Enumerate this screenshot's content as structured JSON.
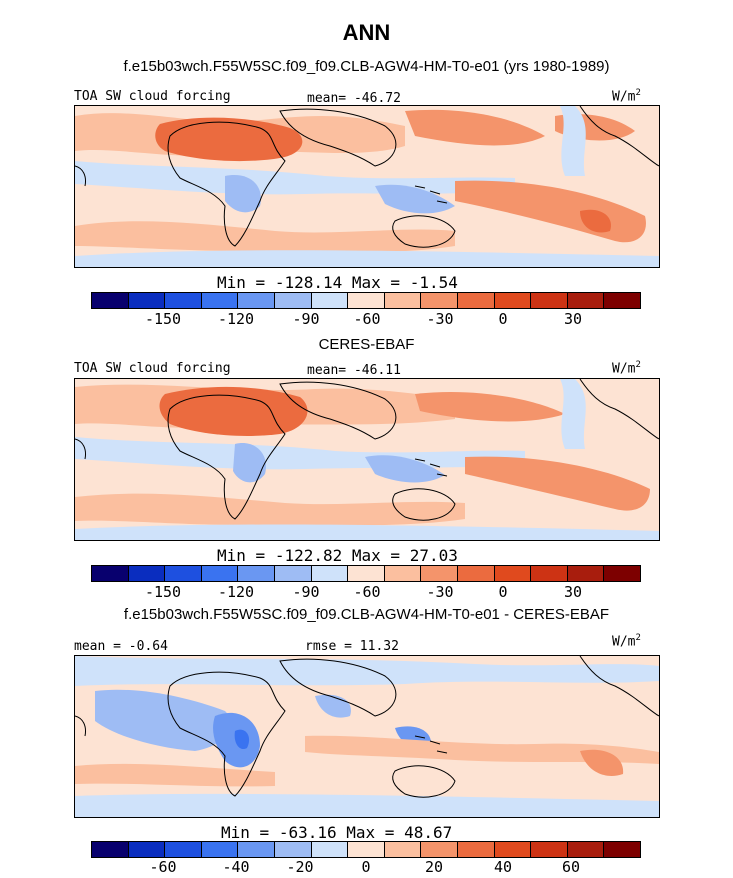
{
  "figure": {
    "title": "ANN",
    "model_name_line": "f.e15b03wch.F55W5SC.f09_f09.CLB-AGW4-HM-T0-e01 (yrs 1980-1989)",
    "obs_name": "CERES-EBAF",
    "diff_name": "f.e15b03wch.F55W5SC.f09_f09.CLB-AGW4-HM-T0-e01 - CERES-EBAF"
  },
  "palette": {
    "colors": [
      "#08006e",
      "#0a2dbf",
      "#1e50e0",
      "#3a73f0",
      "#6a97f2",
      "#9ebcf4",
      "#cfe2fa",
      "#fde3d3",
      "#fbbf9f",
      "#f4946b",
      "#eb6b3f",
      "#e04a1e",
      "#cd3314",
      "#a81d0d",
      "#7d0000"
    ],
    "land_outline": "#000000"
  },
  "chart_data": [
    {
      "type": "heatmap",
      "panel": "model",
      "label_left": "TOA SW cloud forcing",
      "mean_label": "mean=",
      "mean_value": "-46.72",
      "units": "W/m",
      "units_sup": "2",
      "min_label": "Min =",
      "min_value": "-128.14",
      "max_label": "Max =",
      "max_value": "-1.54",
      "colorbar_ticks": [
        "-150",
        "-120",
        "-90",
        "-60",
        "-30",
        "0",
        "30"
      ],
      "colorbar_levels": [
        -150,
        -120,
        -90,
        -60,
        -30,
        0,
        30
      ]
    },
    {
      "type": "heatmap",
      "panel": "observations",
      "label_left": "TOA SW cloud forcing",
      "mean_label": "mean=",
      "mean_value": "-46.11",
      "units": "W/m",
      "units_sup": "2",
      "min_label": "Min =",
      "min_value": "-122.82",
      "max_label": "Max =",
      "max_value": "27.03",
      "colorbar_ticks": [
        "-150",
        "-120",
        "-90",
        "-60",
        "-30",
        "0",
        "30"
      ],
      "colorbar_levels": [
        -150,
        -120,
        -90,
        -60,
        -30,
        0,
        30
      ]
    },
    {
      "type": "heatmap",
      "panel": "difference",
      "mean_label": "mean =",
      "mean_value": "-0.64",
      "rmse_label": "rmse =",
      "rmse_value": "11.32",
      "units": "W/m",
      "units_sup": "2",
      "min_label": "Min =",
      "min_value": "-63.16",
      "max_label": "Max =",
      "max_value": "48.67",
      "colorbar_ticks": [
        "-60",
        "-40",
        "-20",
        "0",
        "20",
        "40",
        "60"
      ],
      "colorbar_levels": [
        -60,
        -40,
        -20,
        0,
        20,
        40,
        60
      ]
    }
  ]
}
